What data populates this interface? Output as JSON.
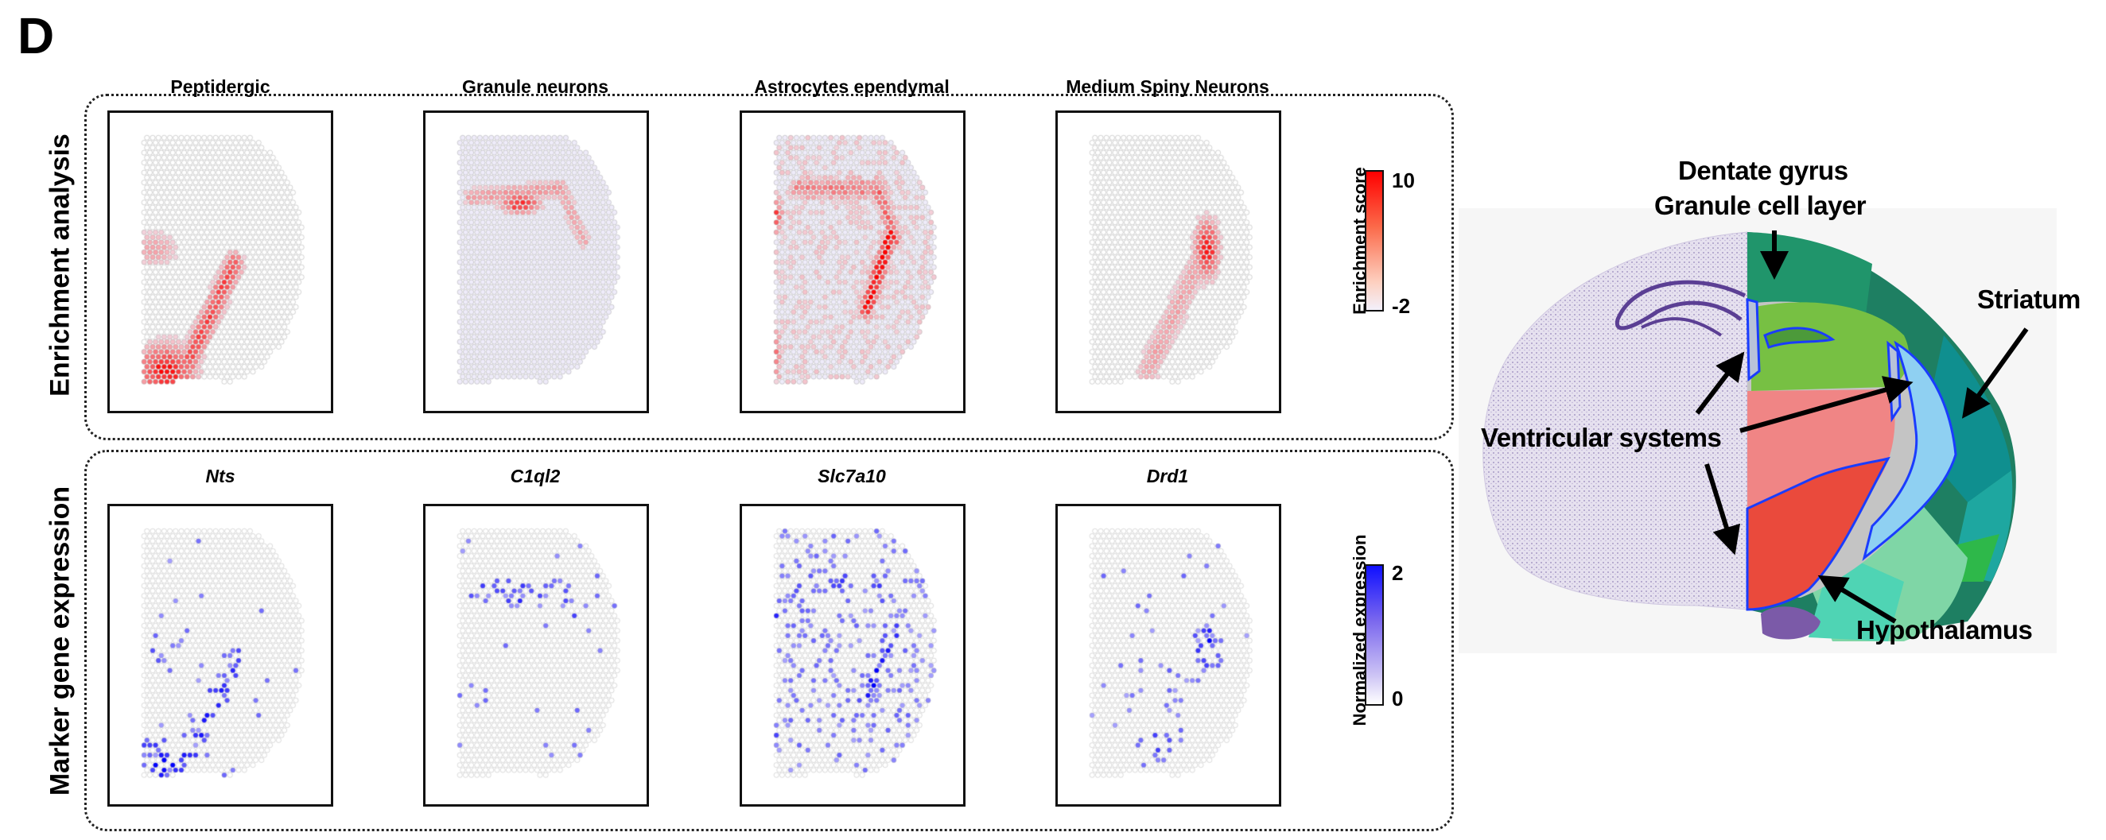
{
  "figure_label": "D",
  "rows": [
    {
      "label": "Enrichment analysis",
      "panels": [
        {
          "title": "Peptidergic",
          "italic": false
        },
        {
          "title": "Granule neurons",
          "italic": false
        },
        {
          "title": "Astrocytes ependymal",
          "italic": false
        },
        {
          "title": "Medium Spiny Neurons",
          "italic": false
        }
      ],
      "colorbar": {
        "title": "Enrichment score",
        "max": "10",
        "min": "-2",
        "color_max": "#ff0000",
        "color_min": "#f3f0fb"
      }
    },
    {
      "label": "Marker gene expression",
      "panels": [
        {
          "title": "Nts",
          "italic": true
        },
        {
          "title": "C1ql2",
          "italic": true
        },
        {
          "title": "Slc7a10",
          "italic": true
        },
        {
          "title": "Drd1",
          "italic": true
        }
      ],
      "colorbar": {
        "title": "Normalized expression",
        "max": "2",
        "min": "0",
        "color_max": "#1010ff",
        "color_min": "#ffffff"
      }
    }
  ],
  "atlas": {
    "labels": {
      "dentate_gyrus": "Dentate gyrus",
      "granule_cell_layer": "Granule cell layer",
      "striatum": "Striatum",
      "ventricular_systems": "Ventricular systems",
      "hypothalamus": "Hypothalamus"
    }
  }
}
